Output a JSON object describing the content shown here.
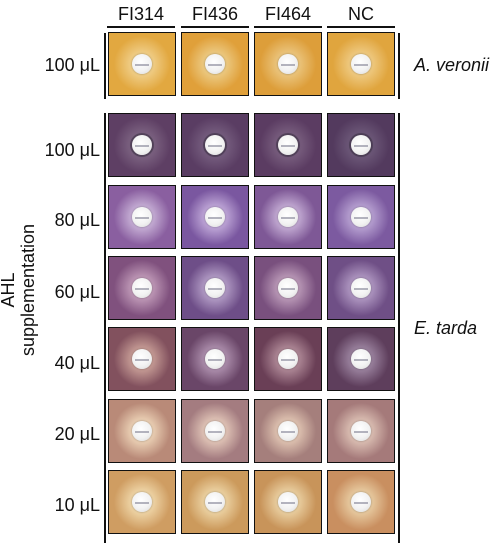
{
  "columns": [
    "FI314",
    "FI436",
    "FI464",
    "NC"
  ],
  "y_axis_label": "AHL supplementation",
  "species": {
    "top": "A. veronii",
    "bottom": "E. tarda"
  },
  "rows": [
    {
      "label": "100 μL",
      "group": "A. veronii",
      "colors": [
        "#e2a840",
        "#e0a03a",
        "#dd9e3a",
        "#e0a53e"
      ],
      "halos": [
        "#f0cf8a",
        "#eccb85",
        "#ebc680",
        "#efcb84"
      ]
    },
    {
      "label": "100 μL",
      "group": "E. tarda",
      "colors": [
        "#5e3f64",
        "#5a3d63",
        "#5b3c62",
        "#533a5e"
      ],
      "halos": [
        "#7e6583",
        "#775f80",
        "#7a6080",
        "#6e5a7a"
      ]
    },
    {
      "label": "80 μL",
      "group": "E. tarda",
      "colors": [
        "#8a5fa0",
        "#7a57a0",
        "#7e5896",
        "#7c5aa0"
      ],
      "halos": [
        "#c7b0d6",
        "#c0a8d8",
        "#c4acd4",
        "#b8a2d2"
      ]
    },
    {
      "label": "60 μL",
      "group": "E. tarda",
      "colors": [
        "#80517e",
        "#6e4e88",
        "#79507e",
        "#6f4f86"
      ],
      "halos": [
        "#c09ab8",
        "#b39dc6",
        "#bb9ab8",
        "#b098c2"
      ]
    },
    {
      "label": "40 μL",
      "group": "E. tarda",
      "colors": [
        "#82515e",
        "#6a4668",
        "#6a3f56",
        "#5e3e5c"
      ],
      "halos": [
        "#c79d96",
        "#ae90ae",
        "#b08a98",
        "#9c84a0"
      ]
    },
    {
      "label": "20 μL",
      "group": "E. tarda",
      "colors": [
        "#b98a78",
        "#a47c80",
        "#a57f7c",
        "#a57a7a"
      ],
      "halos": [
        "#ecd2b6",
        "#e2c6b8",
        "#e0c4b2",
        "#dcc0b4"
      ]
    },
    {
      "label": "10 μL",
      "group": "E. tarda",
      "colors": [
        "#cf9d62",
        "#cc9a5c",
        "#c8945a",
        "#c98f60"
      ],
      "halos": [
        "#efd6a8",
        "#ecd3a4",
        "#ead0a2",
        "#e8cca2"
      ]
    }
  ]
}
